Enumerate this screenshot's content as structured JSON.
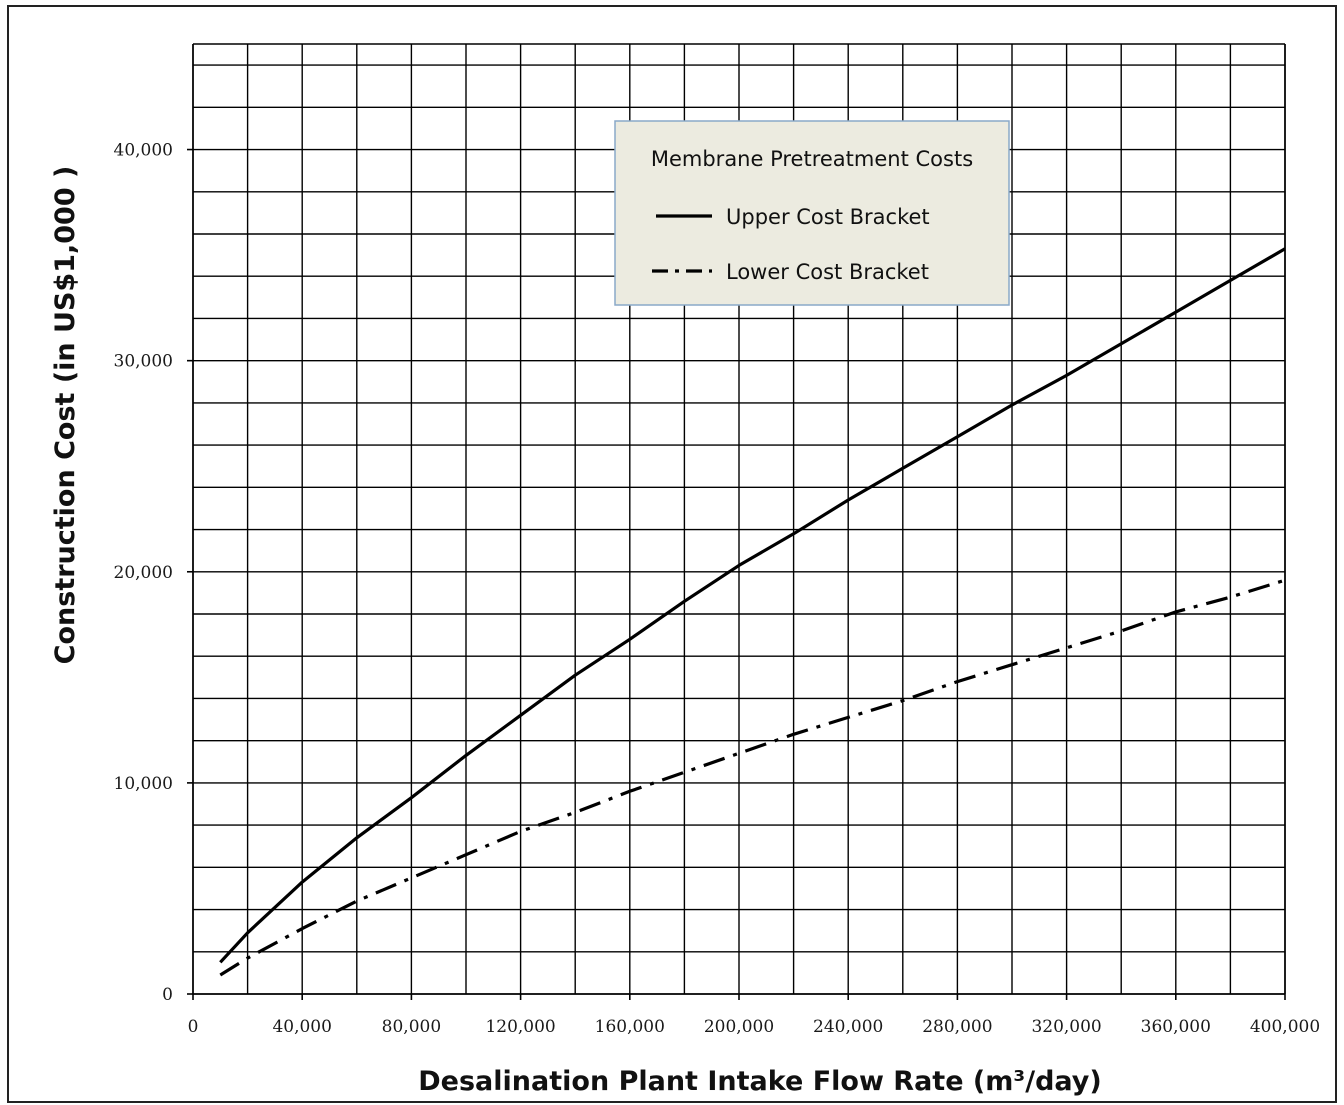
{
  "chart_data": {
    "type": "line",
    "title": "",
    "xlabel": "Desalination Plant Intake Flow Rate (m³/day)",
    "ylabel": "Construction Cost  (in  US$1,000 )",
    "xlim": [
      0,
      400000
    ],
    "ylim": [
      0,
      45000
    ],
    "x_ticks": [
      "0",
      "40,000",
      "80,000",
      "120,000",
      "160,000",
      "200,000",
      "240,000",
      "280,000",
      "320,000",
      "360,000",
      "400,000"
    ],
    "y_ticks": [
      "0",
      "10,000",
      "20,000",
      "30,000",
      "40,000"
    ],
    "grid": true,
    "legend": {
      "title": "Membrane Pretreatment Costs",
      "placement": "top-center",
      "background": "#ecebe0"
    },
    "series": [
      {
        "name": "Upper Cost Bracket",
        "style": "solid",
        "color": "#000000",
        "x": [
          10000,
          20000,
          40000,
          60000,
          80000,
          100000,
          120000,
          140000,
          160000,
          180000,
          200000,
          220000,
          240000,
          260000,
          280000,
          300000,
          320000,
          340000,
          360000,
          380000,
          400000
        ],
        "y": [
          1500,
          2900,
          5300,
          7400,
          9300,
          11300,
          13200,
          15100,
          16800,
          18600,
          20300,
          21800,
          23400,
          24900,
          26400,
          27900,
          29300,
          30800,
          32300,
          33800,
          35300
        ]
      },
      {
        "name": "Lower Cost Bracket",
        "style": "dash-dot",
        "color": "#000000",
        "x": [
          10000,
          20000,
          40000,
          60000,
          80000,
          100000,
          120000,
          140000,
          160000,
          180000,
          200000,
          220000,
          240000,
          260000,
          280000,
          300000,
          320000,
          340000,
          360000,
          380000,
          400000
        ],
        "y": [
          900,
          1700,
          3100,
          4400,
          5500,
          6600,
          7700,
          8600,
          9600,
          10500,
          11400,
          12300,
          13100,
          13900,
          14800,
          15600,
          16400,
          17200,
          18100,
          18800,
          19600
        ]
      }
    ]
  }
}
